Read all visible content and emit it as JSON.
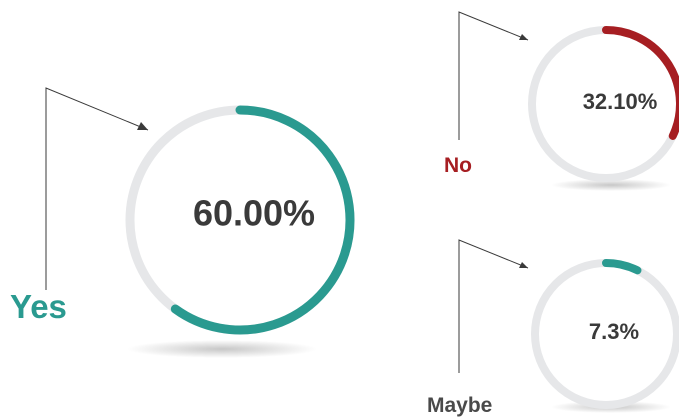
{
  "chart_data": {
    "type": "donut",
    "title": "",
    "charts": [
      {
        "name": "Yes",
        "value": 60.0,
        "value_label": "60.00%",
        "arc_color": "#2a9a90",
        "label_color": "#2a9a90"
      },
      {
        "name": "No",
        "value": 32.1,
        "value_label": "32.10%",
        "arc_color": "#a61e22",
        "label_color": "#a61e22"
      },
      {
        "name": "Maybe",
        "value": 7.3,
        "value_label": "7.3%",
        "arc_color": "#2a9a90",
        "label_color": "#4a4a4a"
      }
    ],
    "track_color": "#e6e7e9",
    "connector_color": "#3a3a3a"
  }
}
